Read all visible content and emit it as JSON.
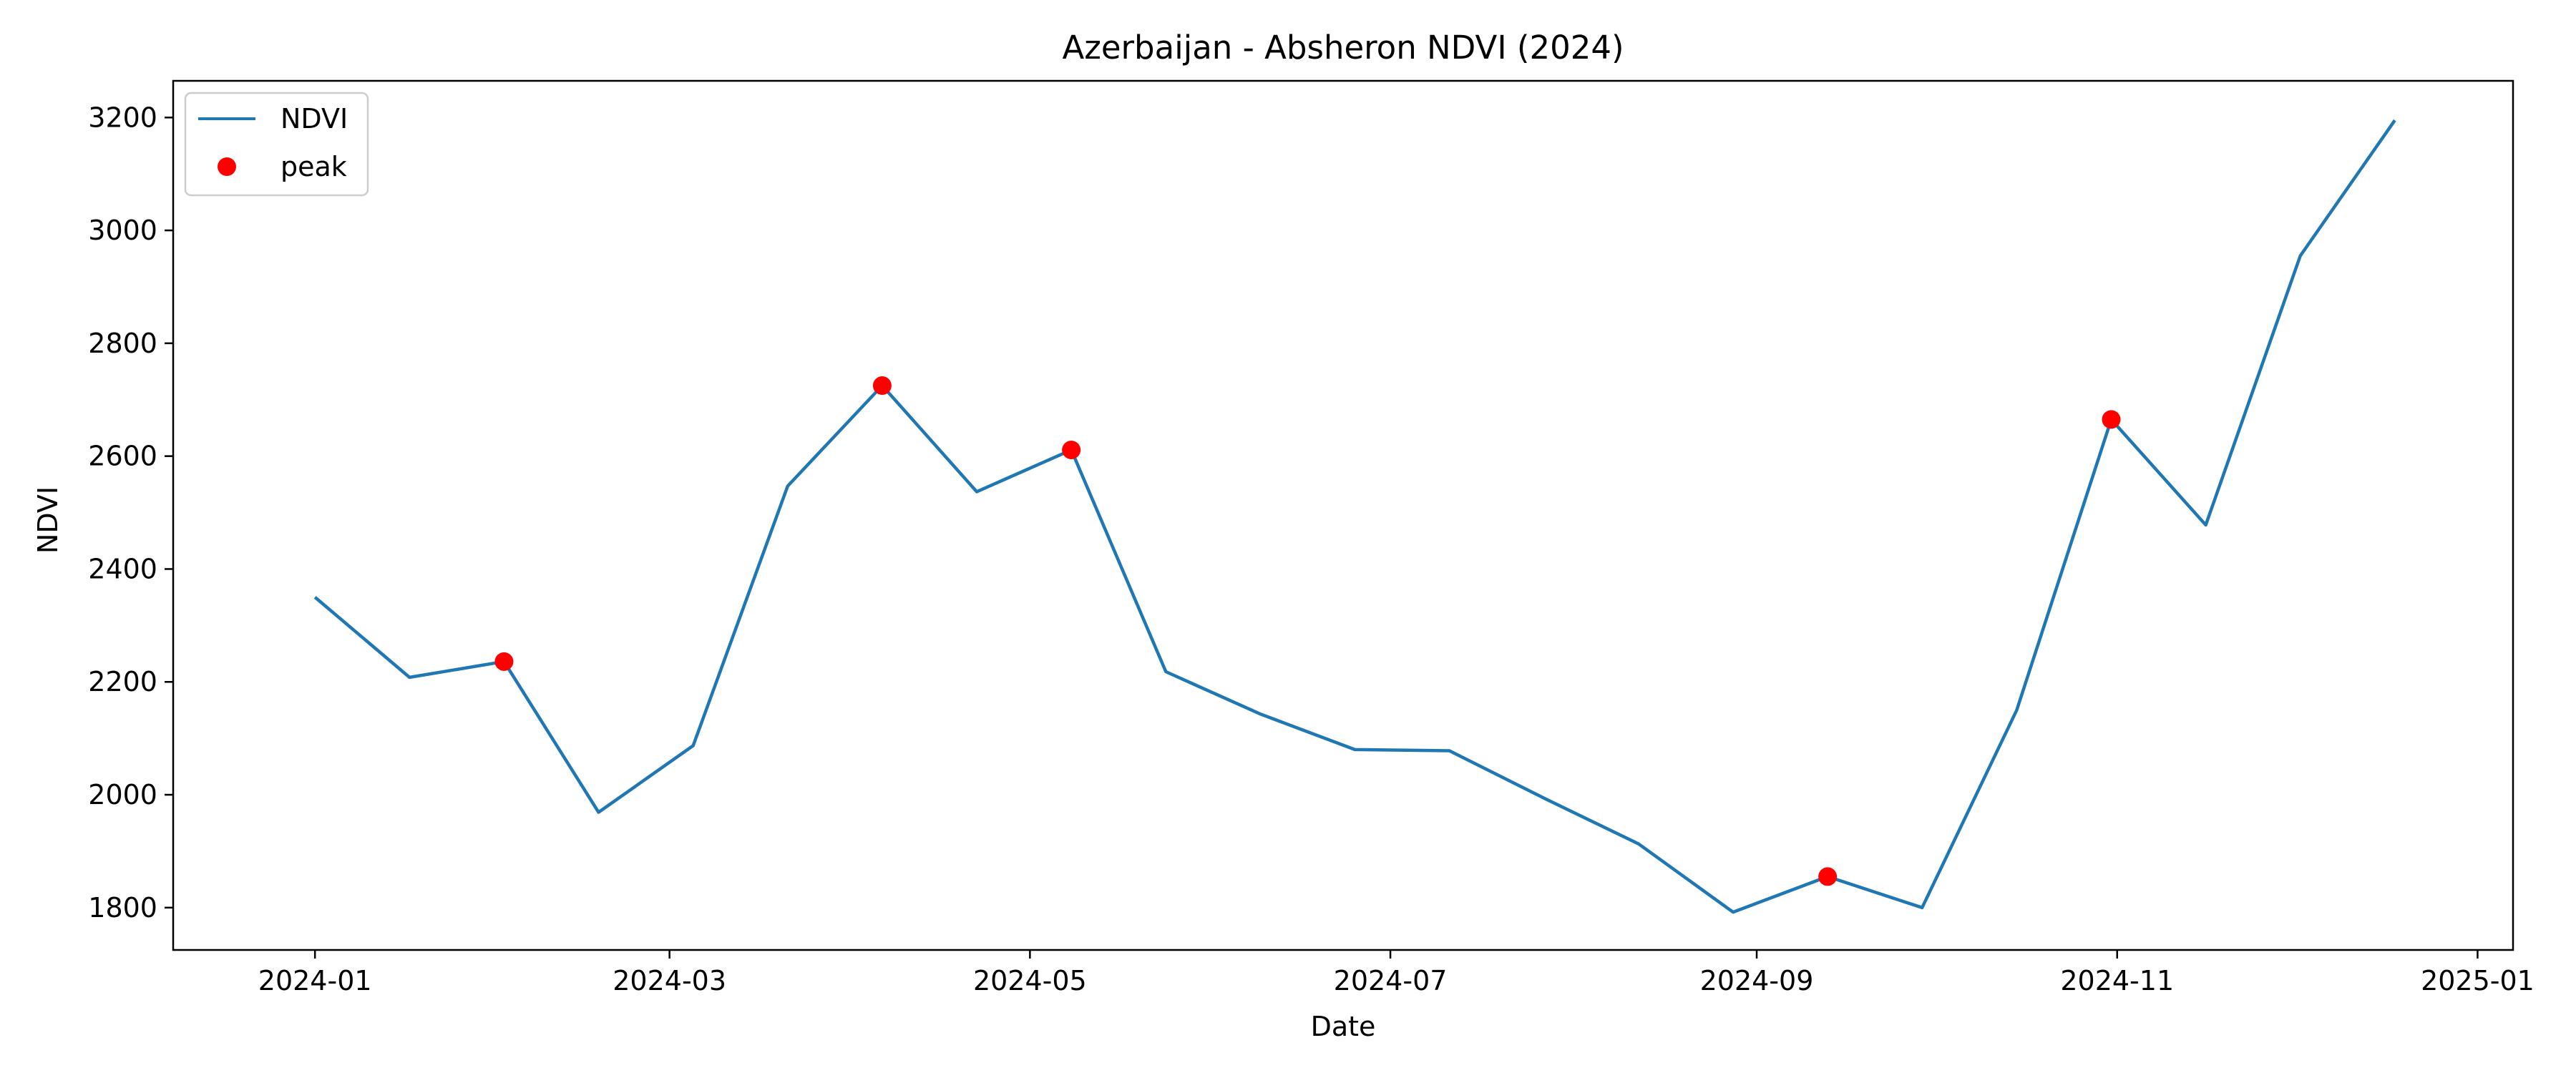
{
  "chart_data": {
    "type": "line",
    "title": "Azerbaijan - Absheron NDVI (2024)",
    "xlabel": "Date",
    "ylabel": "NDVI",
    "xlim": [
      "2023-12-08",
      "2025-01-07"
    ],
    "ylim": [
      1725,
      3265
    ],
    "x_ticks": [
      "2024-01",
      "2024-03",
      "2024-05",
      "2024-07",
      "2024-09",
      "2024-11",
      "2025-01"
    ],
    "y_ticks": [
      1800,
      2000,
      2200,
      2400,
      2600,
      2800,
      3000,
      3200
    ],
    "grid": false,
    "legend": {
      "position": "top-left",
      "entries": [
        "NDVI",
        "peak"
      ]
    },
    "series": [
      {
        "name": "NDVI",
        "style": "line",
        "color": "#1f77b4",
        "x": [
          "2024-01-01",
          "2024-01-17",
          "2024-02-02",
          "2024-02-18",
          "2024-03-05",
          "2024-03-21",
          "2024-04-06",
          "2024-04-22",
          "2024-05-08",
          "2024-05-24",
          "2024-06-09",
          "2024-06-25",
          "2024-07-11",
          "2024-07-27",
          "2024-08-12",
          "2024-08-28",
          "2024-09-13",
          "2024-09-29",
          "2024-10-15",
          "2024-10-31",
          "2024-11-16",
          "2024-12-02",
          "2024-12-18"
        ],
        "values": [
          2350,
          2208,
          2236,
          1969,
          2087,
          2547,
          2725,
          2537,
          2611,
          2218,
          2143,
          2080,
          2078,
          1994,
          1913,
          1792,
          1855,
          1800,
          2150,
          2665,
          2478,
          2955,
          3195
        ]
      },
      {
        "name": "peak",
        "style": "markers",
        "color": "#ff0000",
        "x": [
          "2024-02-02",
          "2024-04-06",
          "2024-05-08",
          "2024-09-13",
          "2024-10-31"
        ],
        "values": [
          2236,
          2725,
          2611,
          1855,
          2665
        ]
      }
    ]
  }
}
